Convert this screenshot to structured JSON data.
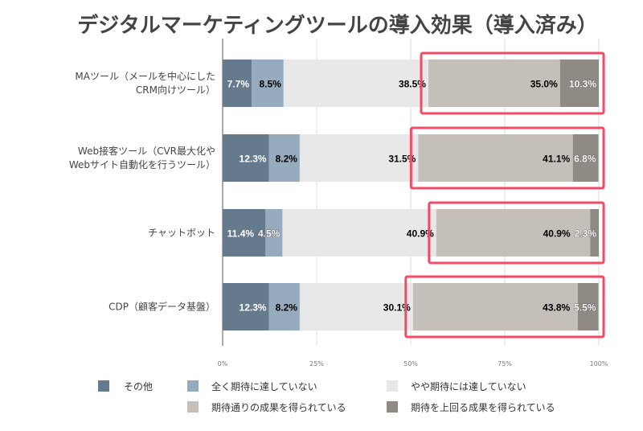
{
  "chart_data": {
    "type": "bar",
    "orientation": "horizontal",
    "stacked": true,
    "title": "デジタルマーケティングツールの導入効果（導入済み）",
    "categories": [
      [
        "MAツール（メールを中心にした",
        "CRM向けツール）"
      ],
      [
        "Web接客ツール（CVR最大化や",
        "Webサイト自動化を行うツール）"
      ],
      [
        "チャットボット"
      ],
      [
        "CDP（顧客データ基盤）"
      ]
    ],
    "series": [
      {
        "name": "その他",
        "color": "#667a8e",
        "values": [
          7.7,
          12.3,
          11.4,
          12.3
        ]
      },
      {
        "name": "全く期待に達していない",
        "color": "#97abbf",
        "values": [
          8.5,
          8.2,
          4.5,
          8.2
        ]
      },
      {
        "name": "やや期待には達していない",
        "color": "#e8e8e8",
        "values": [
          38.5,
          31.5,
          40.9,
          30.1
        ]
      },
      {
        "name": "期待通りの成果を得られている",
        "color": "#c4bfb8",
        "values": [
          35.0,
          41.1,
          40.9,
          43.8
        ]
      },
      {
        "name": "期待を上回る成果を得られている",
        "color": "#8f8a84",
        "values": [
          10.3,
          6.8,
          2.3,
          5.5
        ]
      }
    ],
    "data_labels": [
      [
        "7.7%",
        "8.5%",
        "38.5%",
        "35.0%",
        "10.3%"
      ],
      [
        "12.3%",
        "8.2%",
        "31.5%",
        "41.1%",
        "6.8%"
      ],
      [
        "11.4%",
        "4.5%",
        "40.9%",
        "40.9%",
        "2.3%"
      ],
      [
        "12.3%",
        "8.2%",
        "30.1%",
        "43.8%",
        "5.5%"
      ]
    ],
    "xlim": [
      0,
      100
    ],
    "x_ticks": [
      "0%",
      "25%",
      "50%",
      "75%",
      "100%"
    ],
    "grid": true,
    "legend_placement": "bottom",
    "highlight": {
      "color": "#f44a68",
      "series": [
        "期待通りの成果を得られている",
        "期待を上回る成果を得られている"
      ]
    }
  }
}
